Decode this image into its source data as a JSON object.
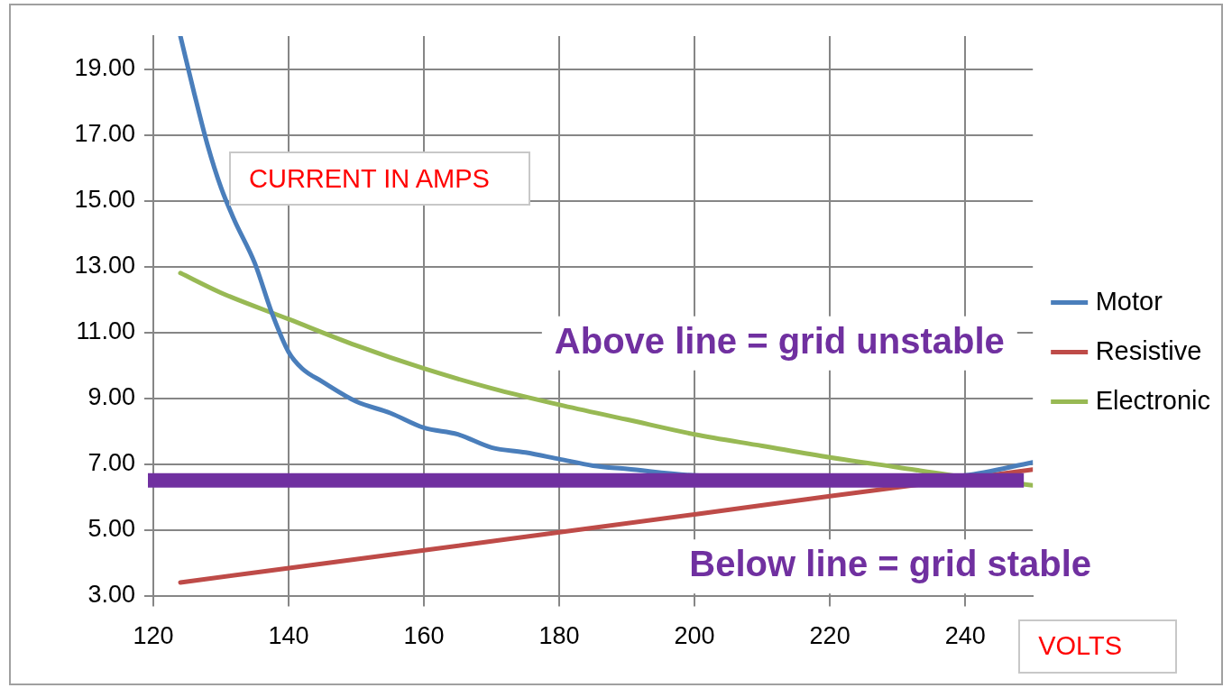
{
  "chart_data": {
    "type": "line",
    "xlabel": "VOLTS",
    "ylabel": "CURRENT IN AMPS",
    "series": [
      {
        "name": "Motor",
        "color": "#4a7ebb",
        "x": [
          124,
          126,
          128,
          130,
          132,
          135,
          137.5,
          140,
          142,
          145,
          150,
          155,
          160,
          165,
          170,
          175,
          180,
          185,
          190,
          200,
          210,
          220,
          230,
          240,
          250
        ],
        "values": [
          20,
          18.3,
          16.7,
          15.4,
          14.4,
          13.1,
          11.6,
          10.4,
          9.9,
          9.5,
          8.9,
          8.55,
          8.1,
          7.9,
          7.5,
          7.35,
          7.15,
          6.95,
          6.85,
          6.65,
          6.58,
          6.55,
          6.56,
          6.65,
          7.05
        ]
      },
      {
        "name": "Resistive",
        "color": "#be4b48",
        "x": [
          124,
          160,
          200,
          220,
          240,
          250
        ],
        "values": [
          3.4,
          4.38,
          5.47,
          6.02,
          6.56,
          6.83
        ]
      },
      {
        "name": "Electronic",
        "color": "#98b954",
        "x": [
          124,
          130,
          140,
          150,
          160,
          170,
          180,
          190,
          200,
          210,
          220,
          230,
          240,
          250
        ],
        "values": [
          12.8,
          12.2,
          11.4,
          10.6,
          9.9,
          9.3,
          8.8,
          8.35,
          7.9,
          7.55,
          7.2,
          6.9,
          6.6,
          6.35
        ]
      }
    ],
    "xlim": [
      120,
      250
    ],
    "xticks": [
      120,
      140,
      160,
      180,
      200,
      220,
      240
    ],
    "ylim": [
      3,
      20
    ],
    "yticks": [
      {
        "value": 3,
        "label": "3.00"
      },
      {
        "value": 5,
        "label": "5.00"
      },
      {
        "value": 7,
        "label": "7.00"
      },
      {
        "value": 9,
        "label": "9.00"
      },
      {
        "value": 11,
        "label": "11.00"
      },
      {
        "value": 13,
        "label": "13.00"
      },
      {
        "value": 15,
        "label": "15.00"
      },
      {
        "value": 17,
        "label": "17.00"
      },
      {
        "value": 19,
        "label": "19.00"
      }
    ],
    "ref_lines": [
      {
        "axis": "y",
        "value": 6.5,
        "color": "#7030a0"
      }
    ],
    "annotations": [
      "Above line = grid unstable",
      "Below line = grid stable"
    ],
    "grid": true,
    "legend": "right",
    "line_style": "solid",
    "marker": "none"
  }
}
